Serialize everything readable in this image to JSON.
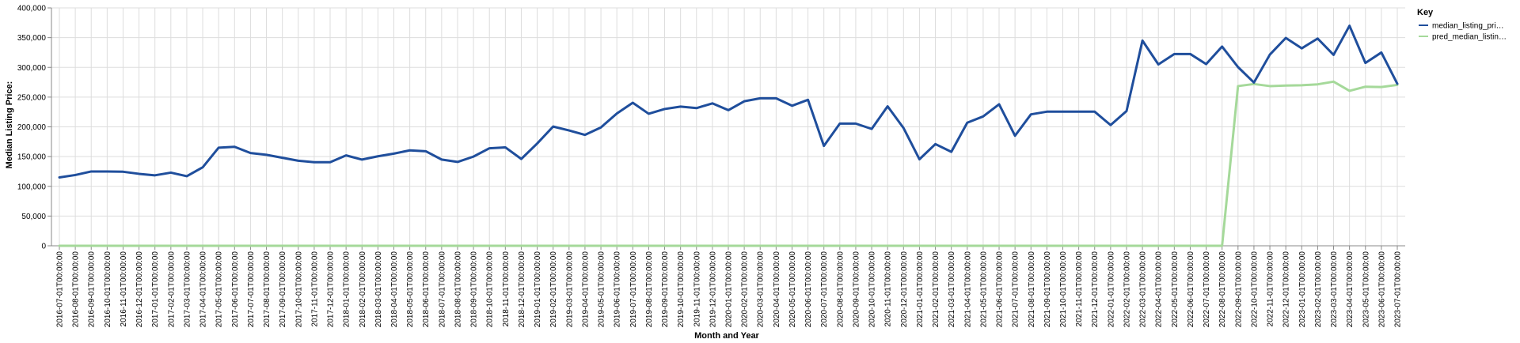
{
  "chart_data": {
    "type": "line",
    "xlabel": "Month and Year",
    "ylabel": "Median Listing Price:",
    "ylim": [
      0,
      400000
    ],
    "yticks": [
      0,
      50000,
      100000,
      150000,
      200000,
      250000,
      300000,
      350000,
      400000
    ],
    "ytick_labels": [
      "0",
      "50,000",
      "100,000",
      "150,000",
      "200,000",
      "250,000",
      "300,000",
      "350,000",
      "400,000"
    ],
    "grid": true,
    "legend": {
      "title": "Key",
      "placement": "top-right"
    },
    "x": [
      "2016-07-01T00:00:00",
      "2016-08-01T00:00:00",
      "2016-09-01T00:00:00",
      "2016-10-01T00:00:00",
      "2016-11-01T00:00:00",
      "2016-12-01T00:00:00",
      "2017-01-01T00:00:00",
      "2017-02-01T00:00:00",
      "2017-03-01T00:00:00",
      "2017-04-01T00:00:00",
      "2017-05-01T00:00:00",
      "2017-06-01T00:00:00",
      "2017-07-01T00:00:00",
      "2017-08-01T00:00:00",
      "2017-09-01T00:00:00",
      "2017-10-01T00:00:00",
      "2017-11-01T00:00:00",
      "2017-12-01T00:00:00",
      "2018-01-01T00:00:00",
      "2018-02-01T00:00:00",
      "2018-03-01T00:00:00",
      "2018-04-01T00:00:00",
      "2018-05-01T00:00:00",
      "2018-06-01T00:00:00",
      "2018-07-01T00:00:00",
      "2018-08-01T00:00:00",
      "2018-09-01T00:00:00",
      "2018-10-01T00:00:00",
      "2018-11-01T00:00:00",
      "2018-12-01T00:00:00",
      "2019-01-01T00:00:00",
      "2019-02-01T00:00:00",
      "2019-03-01T00:00:00",
      "2019-04-01T00:00:00",
      "2019-05-01T00:00:00",
      "2019-06-01T00:00:00",
      "2019-07-01T00:00:00",
      "2019-08-01T00:00:00",
      "2019-09-01T00:00:00",
      "2019-10-01T00:00:00",
      "2019-11-01T00:00:00",
      "2019-12-01T00:00:00",
      "2020-01-01T00:00:00",
      "2020-02-01T00:00:00",
      "2020-03-01T00:00:00",
      "2020-04-01T00:00:00",
      "2020-05-01T00:00:00",
      "2020-06-01T00:00:00",
      "2020-07-01T00:00:00",
      "2020-08-01T00:00:00",
      "2020-09-01T00:00:00",
      "2020-10-01T00:00:00",
      "2020-11-01T00:00:00",
      "2020-12-01T00:00:00",
      "2021-01-01T00:00:00",
      "2021-02-01T00:00:00",
      "2021-03-01T00:00:00",
      "2021-04-01T00:00:00",
      "2021-05-01T00:00:00",
      "2021-06-01T00:00:00",
      "2021-07-01T00:00:00",
      "2021-08-01T00:00:00",
      "2021-09-01T00:00:00",
      "2021-10-01T00:00:00",
      "2021-11-01T00:00:00",
      "2021-12-01T00:00:00",
      "2022-01-01T00:00:00",
      "2022-02-01T00:00:00",
      "2022-03-01T00:00:00",
      "2022-04-01T00:00:00",
      "2022-05-01T00:00:00",
      "2022-06-01T00:00:00",
      "2022-07-01T00:00:00",
      "2022-08-01T00:00:00",
      "2022-09-01T00:00:00",
      "2022-10-01T00:00:00",
      "2022-11-01T00:00:00",
      "2022-12-01T00:00:00",
      "2023-01-01T00:00:00",
      "2023-02-01T00:00:00",
      "2023-03-01T00:00:00",
      "2023-04-01T00:00:00",
      "2023-05-01T00:00:00",
      "2023-06-01T00:00:00",
      "2023-07-01T00:00:00"
    ],
    "series": [
      {
        "name": "median_listing_pri…",
        "color": "#1f4e9c",
        "values": [
          115000,
          119000,
          125000,
          125000,
          124500,
          121000,
          118500,
          123000,
          117000,
          132000,
          165000,
          166500,
          156000,
          153000,
          148000,
          143000,
          140500,
          140500,
          152000,
          145000,
          150500,
          155000,
          160500,
          159000,
          145000,
          141000,
          150000,
          164000,
          165500,
          146000,
          172000,
          200500,
          194000,
          186500,
          199000,
          222500,
          240500,
          222000,
          230000,
          234000,
          231500,
          239500,
          228000,
          243000,
          248000,
          248000,
          235500,
          245500,
          168000,
          205500,
          205500,
          196500,
          234500,
          198000,
          145500,
          171000,
          158000,
          207000,
          217500,
          238000,
          185000,
          221000,
          225500,
          225500,
          225500,
          225500,
          203000,
          226500,
          345000,
          305000,
          322500,
          322500,
          305500,
          335000,
          300500,
          274500,
          321500,
          349500,
          332000,
          348500,
          321000,
          370000,
          307500,
          325000,
          272500
        ]
      },
      {
        "name": "pred_median_listin…",
        "color": "#a5d99a",
        "values": [
          0,
          0,
          0,
          0,
          0,
          0,
          0,
          0,
          0,
          0,
          0,
          0,
          0,
          0,
          0,
          0,
          0,
          0,
          0,
          0,
          0,
          0,
          0,
          0,
          0,
          0,
          0,
          0,
          0,
          0,
          0,
          0,
          0,
          0,
          0,
          0,
          0,
          0,
          0,
          0,
          0,
          0,
          0,
          0,
          0,
          0,
          0,
          0,
          0,
          0,
          0,
          0,
          0,
          0,
          0,
          0,
          0,
          0,
          0,
          0,
          0,
          0,
          0,
          0,
          0,
          0,
          0,
          0,
          0,
          0,
          0,
          0,
          0,
          0,
          268500,
          272000,
          268500,
          269500,
          270000,
          271500,
          276000,
          260500,
          267500,
          267000,
          270500
        ]
      }
    ]
  }
}
